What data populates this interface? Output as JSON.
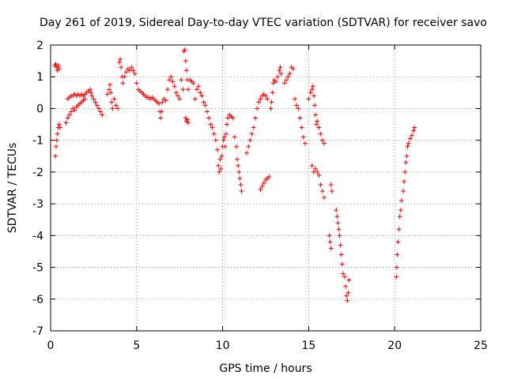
{
  "chart_data": {
    "type": "scatter",
    "title": "Day 261 of 2019, Sidereal Day-to-day VTEC variation (SDTVAR) for receiver savo",
    "xlabel": "GPS time / hours",
    "ylabel": "SDTVAR / TECUs",
    "xlim": [
      0,
      25
    ],
    "ylim": [
      -7,
      2
    ],
    "xticks": [
      "0",
      "5",
      "10",
      "15",
      "20",
      "25"
    ],
    "yticks": [
      "2",
      "1",
      "0",
      "-1",
      "-2",
      "-3",
      "-4",
      "-5",
      "-6",
      "-7"
    ],
    "grid": true,
    "marker": "+",
    "color": "#ff0000",
    "series": [
      {
        "name": "SDTVAR",
        "points": [
          [
            0.25,
            1.35
          ],
          [
            0.3,
            1.4
          ],
          [
            0.35,
            1.3
          ],
          [
            0.4,
            1.2
          ],
          [
            0.45,
            1.35
          ],
          [
            0.5,
            1.25
          ],
          [
            0.28,
            -1.5
          ],
          [
            0.32,
            -1.2
          ],
          [
            0.36,
            -1.0
          ],
          [
            0.4,
            -0.8
          ],
          [
            0.45,
            -0.6
          ],
          [
            0.5,
            -0.5
          ],
          [
            0.55,
            -0.6
          ],
          [
            0.9,
            -0.45
          ],
          [
            1.0,
            -0.3
          ],
          [
            1.1,
            -0.2
          ],
          [
            1.2,
            -0.1
          ],
          [
            1.3,
            0.0
          ],
          [
            1.4,
            -0.05
          ],
          [
            1.5,
            0.05
          ],
          [
            1.6,
            0.1
          ],
          [
            1.7,
            0.15
          ],
          [
            1.8,
            0.2
          ],
          [
            1.9,
            0.25
          ],
          [
            2.0,
            0.3
          ],
          [
            1.0,
            0.3
          ],
          [
            1.1,
            0.35
          ],
          [
            1.2,
            0.4
          ],
          [
            1.3,
            0.4
          ],
          [
            1.4,
            0.45
          ],
          [
            1.5,
            0.4
          ],
          [
            1.6,
            0.45
          ],
          [
            1.7,
            0.4
          ],
          [
            1.8,
            0.45
          ],
          [
            1.9,
            0.4
          ],
          [
            2.0,
            0.45
          ],
          [
            2.1,
            0.5
          ],
          [
            2.2,
            0.55
          ],
          [
            2.3,
            0.6
          ],
          [
            2.35,
            0.5
          ],
          [
            2.4,
            0.4
          ],
          [
            2.5,
            0.3
          ],
          [
            2.6,
            0.2
          ],
          [
            2.7,
            0.1
          ],
          [
            2.8,
            0.0
          ],
          [
            2.9,
            -0.1
          ],
          [
            3.0,
            -0.2
          ],
          [
            3.3,
            0.45
          ],
          [
            3.4,
            0.6
          ],
          [
            3.45,
            0.75
          ],
          [
            3.5,
            0.5
          ],
          [
            3.55,
            0.2
          ],
          [
            3.6,
            0.0
          ],
          [
            3.7,
            0.3
          ],
          [
            3.8,
            0.1
          ],
          [
            3.9,
            0.0
          ],
          [
            4.0,
            1.45
          ],
          [
            4.05,
            1.55
          ],
          [
            4.1,
            1.3
          ],
          [
            4.15,
            1.0
          ],
          [
            4.2,
            0.8
          ],
          [
            4.3,
            1.0
          ],
          [
            4.4,
            1.15
          ],
          [
            4.5,
            1.25
          ],
          [
            4.6,
            1.2
          ],
          [
            4.7,
            1.3
          ],
          [
            4.8,
            1.2
          ],
          [
            4.9,
            1.1
          ],
          [
            5.0,
            0.8
          ],
          [
            5.1,
            0.6
          ],
          [
            5.2,
            0.55
          ],
          [
            5.3,
            0.5
          ],
          [
            5.4,
            0.45
          ],
          [
            5.5,
            0.4
          ],
          [
            5.6,
            0.35
          ],
          [
            5.7,
            0.35
          ],
          [
            5.8,
            0.3
          ],
          [
            5.9,
            0.35
          ],
          [
            6.0,
            0.3
          ],
          [
            6.1,
            0.25
          ],
          [
            6.2,
            0.2
          ],
          [
            6.3,
            0.15
          ],
          [
            6.35,
            -0.1
          ],
          [
            6.4,
            -0.3
          ],
          [
            6.45,
            -0.1
          ],
          [
            6.5,
            0.2
          ],
          [
            6.6,
            0.3
          ],
          [
            6.7,
            0.25
          ],
          [
            6.8,
            0.6
          ],
          [
            6.9,
            0.9
          ],
          [
            7.0,
            1.0
          ],
          [
            7.1,
            0.85
          ],
          [
            7.2,
            0.7
          ],
          [
            7.3,
            0.5
          ],
          [
            7.4,
            0.4
          ],
          [
            7.5,
            0.3
          ],
          [
            7.6,
            0.9
          ],
          [
            7.7,
            0.6
          ],
          [
            7.75,
            1.8
          ],
          [
            7.8,
            1.85
          ],
          [
            7.85,
            1.5
          ],
          [
            7.9,
            1.2
          ],
          [
            7.95,
            0.9
          ],
          [
            8.0,
            0.6
          ],
          [
            7.85,
            -0.3
          ],
          [
            7.9,
            -0.4
          ],
          [
            7.95,
            -0.35
          ],
          [
            8.0,
            -0.45
          ],
          [
            8.1,
            0.9
          ],
          [
            8.2,
            0.85
          ],
          [
            8.3,
            0.8
          ],
          [
            8.4,
            0.3
          ],
          [
            8.5,
            0.6
          ],
          [
            8.6,
            0.7
          ],
          [
            8.7,
            0.5
          ],
          [
            8.8,
            0.4
          ],
          [
            8.9,
            0.2
          ],
          [
            9.0,
            0.1
          ],
          [
            9.1,
            -0.1
          ],
          [
            9.2,
            -0.3
          ],
          [
            9.3,
            -0.5
          ],
          [
            9.4,
            -0.6
          ],
          [
            9.5,
            -0.8
          ],
          [
            9.6,
            -1.0
          ],
          [
            9.7,
            -1.3
          ],
          [
            9.75,
            -1.8
          ],
          [
            9.8,
            -2.0
          ],
          [
            9.85,
            -1.6
          ],
          [
            9.9,
            -1.9
          ],
          [
            9.95,
            -1.5
          ],
          [
            10.0,
            -1.2
          ],
          [
            10.05,
            -1.0
          ],
          [
            10.1,
            -0.9
          ],
          [
            10.15,
            -1.2
          ],
          [
            10.2,
            -0.8
          ],
          [
            10.25,
            -0.5
          ],
          [
            10.3,
            -0.3
          ],
          [
            10.4,
            -0.2
          ],
          [
            10.5,
            -0.25
          ],
          [
            10.6,
            -0.3
          ],
          [
            10.7,
            -0.9
          ],
          [
            10.8,
            -1.2
          ],
          [
            10.85,
            -1.6
          ],
          [
            10.9,
            -1.8
          ],
          [
            10.95,
            -2.0
          ],
          [
            11.0,
            -2.2
          ],
          [
            11.05,
            -2.4
          ],
          [
            11.1,
            -2.6
          ],
          [
            11.4,
            -1.4
          ],
          [
            11.5,
            -1.2
          ],
          [
            11.6,
            -1.0
          ],
          [
            11.7,
            -0.8
          ],
          [
            11.8,
            -0.6
          ],
          [
            11.9,
            -0.3
          ],
          [
            12.0,
            0.0
          ],
          [
            12.1,
            0.2
          ],
          [
            12.2,
            0.3
          ],
          [
            12.3,
            0.4
          ],
          [
            12.4,
            0.45
          ],
          [
            12.5,
            0.4
          ],
          [
            12.6,
            0.3
          ],
          [
            12.2,
            -2.55
          ],
          [
            12.3,
            -2.45
          ],
          [
            12.4,
            -2.35
          ],
          [
            12.5,
            -2.25
          ],
          [
            12.6,
            -2.2
          ],
          [
            12.7,
            -2.15
          ],
          [
            12.8,
            0.0
          ],
          [
            12.85,
            0.2
          ],
          [
            12.9,
            0.5
          ],
          [
            12.95,
            0.8
          ],
          [
            13.0,
            0.9
          ],
          [
            13.1,
            0.85
          ],
          [
            13.2,
            1.0
          ],
          [
            13.3,
            1.2
          ],
          [
            13.35,
            1.3
          ],
          [
            13.4,
            1.1
          ],
          [
            13.6,
            0.8
          ],
          [
            13.7,
            0.9
          ],
          [
            13.8,
            1.0
          ],
          [
            13.9,
            1.1
          ],
          [
            14.0,
            1.3
          ],
          [
            14.1,
            1.25
          ],
          [
            14.2,
            0.3
          ],
          [
            14.3,
            0.1
          ],
          [
            14.4,
            0.0
          ],
          [
            14.5,
            -0.3
          ],
          [
            14.6,
            -0.6
          ],
          [
            14.7,
            -0.9
          ],
          [
            14.8,
            -1.1
          ],
          [
            15.0,
            0.3
          ],
          [
            15.1,
            0.5
          ],
          [
            15.2,
            0.6
          ],
          [
            15.25,
            0.7
          ],
          [
            15.3,
            0.4
          ],
          [
            15.35,
            0.1
          ],
          [
            15.4,
            -0.2
          ],
          [
            15.45,
            -0.5
          ],
          [
            15.5,
            -0.4
          ],
          [
            15.6,
            -0.6
          ],
          [
            15.7,
            -0.8
          ],
          [
            15.8,
            -1.0
          ],
          [
            15.9,
            -1.1
          ],
          [
            15.2,
            -1.8
          ],
          [
            15.3,
            -2.0
          ],
          [
            15.4,
            -1.9
          ],
          [
            15.5,
            -2.0
          ],
          [
            15.6,
            -2.1
          ],
          [
            15.7,
            -2.4
          ],
          [
            15.8,
            -2.6
          ],
          [
            15.9,
            -2.8
          ],
          [
            16.3,
            -2.4
          ],
          [
            16.35,
            -2.6
          ],
          [
            16.2,
            -4.0
          ],
          [
            16.25,
            -4.2
          ],
          [
            16.3,
            -4.4
          ],
          [
            16.6,
            -3.2
          ],
          [
            16.65,
            -3.4
          ],
          [
            16.7,
            -3.6
          ],
          [
            16.75,
            -3.8
          ],
          [
            16.8,
            -4.0
          ],
          [
            16.85,
            -4.3
          ],
          [
            16.9,
            -4.6
          ],
          [
            16.95,
            -4.9
          ],
          [
            17.0,
            -5.2
          ],
          [
            17.1,
            -5.3
          ],
          [
            17.15,
            -5.6
          ],
          [
            17.2,
            -5.9
          ],
          [
            17.25,
            -6.05
          ],
          [
            17.3,
            -5.8
          ],
          [
            17.35,
            -5.4
          ],
          [
            20.1,
            -5.3
          ],
          [
            20.12,
            -5.0
          ],
          [
            20.15,
            -4.6
          ],
          [
            20.2,
            -4.2
          ],
          [
            20.25,
            -3.8
          ],
          [
            20.3,
            -3.4
          ],
          [
            20.35,
            -3.2
          ],
          [
            20.4,
            -2.9
          ],
          [
            20.5,
            -2.6
          ],
          [
            20.55,
            -2.3
          ],
          [
            20.6,
            -2.0
          ],
          [
            20.65,
            -1.7
          ],
          [
            20.7,
            -1.5
          ],
          [
            20.75,
            -1.2
          ],
          [
            20.8,
            -1.1
          ],
          [
            20.9,
            -0.95
          ],
          [
            21.0,
            -0.85
          ],
          [
            21.1,
            -0.7
          ],
          [
            21.15,
            -0.6
          ]
        ]
      }
    ]
  }
}
